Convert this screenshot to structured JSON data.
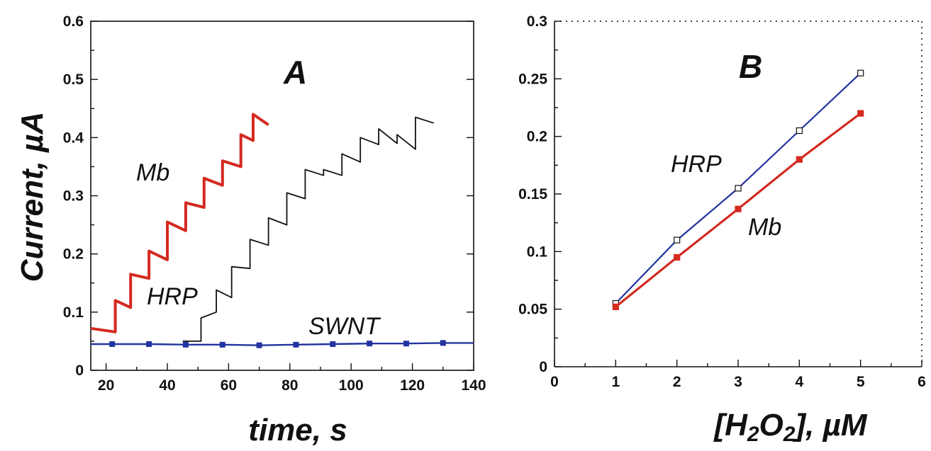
{
  "chart_data": [
    {
      "panel": "A",
      "type": "line",
      "xlabel": "time, s",
      "ylabel": "Current, µA",
      "xlim": [
        15,
        140
      ],
      "ylim": [
        0,
        0.6
      ],
      "xticks": [
        "20",
        "40",
        "60",
        "80",
        "100",
        "120",
        "140"
      ],
      "yticks": [
        "0",
        "0.1",
        "0.2",
        "0.3",
        "0.4",
        "0.5",
        "0.6"
      ],
      "grid": false,
      "series": [
        {
          "name": "Mb",
          "color": "#d42a20",
          "markers": false,
          "steps": [
            [
              15,
              0.072
            ],
            [
              23,
              0.066
            ],
            [
              23,
              0.12
            ],
            [
              28,
              0.108
            ],
            [
              28,
              0.165
            ],
            [
              34,
              0.158
            ],
            [
              34,
              0.205
            ],
            [
              40,
              0.19
            ],
            [
              40,
              0.255
            ],
            [
              46,
              0.24
            ],
            [
              46,
              0.288
            ],
            [
              52,
              0.28
            ],
            [
              52,
              0.33
            ],
            [
              58,
              0.318
            ],
            [
              58,
              0.36
            ],
            [
              64,
              0.35
            ],
            [
              64,
              0.405
            ],
            [
              68,
              0.395
            ],
            [
              68,
              0.44
            ],
            [
              73,
              0.422
            ]
          ]
        },
        {
          "name": "HRP",
          "color": "#111111",
          "markers": false,
          "steps": [
            [
              45,
              0.05
            ],
            [
              51,
              0.05
            ],
            [
              51,
              0.09
            ],
            [
              56,
              0.1
            ],
            [
              56,
              0.138
            ],
            [
              61,
              0.125
            ],
            [
              61,
              0.178
            ],
            [
              67,
              0.175
            ],
            [
              67,
              0.225
            ],
            [
              73,
              0.215
            ],
            [
              73,
              0.262
            ],
            [
              79,
              0.25
            ],
            [
              79,
              0.305
            ],
            [
              85,
              0.295
            ],
            [
              85,
              0.345
            ],
            [
              91,
              0.335
            ],
            [
              91,
              0.345
            ],
            [
              97,
              0.335
            ],
            [
              97,
              0.372
            ],
            [
              103,
              0.358
            ],
            [
              103,
              0.4
            ],
            [
              109,
              0.388
            ],
            [
              109,
              0.415
            ],
            [
              115,
              0.39
            ],
            [
              115,
              0.405
            ],
            [
              121,
              0.38
            ],
            [
              121,
              0.435
            ],
            [
              127,
              0.425
            ]
          ]
        },
        {
          "name": "SWNT",
          "color": "#2233a0",
          "markers": true,
          "x": [
            22,
            34,
            46,
            58,
            70,
            82,
            94,
            106,
            118,
            130
          ],
          "y": [
            0.045,
            0.045,
            0.044,
            0.044,
            0.043,
            0.044,
            0.045,
            0.046,
            0.046,
            0.047
          ]
        }
      ],
      "annotations": [
        {
          "text": "A"
        },
        {
          "text": "Mb"
        },
        {
          "text": "HRP"
        },
        {
          "text": "SWNT"
        }
      ]
    },
    {
      "panel": "B",
      "type": "line",
      "xlabel": "[H2O2], µM",
      "ylabel": "",
      "xlim": [
        0,
        6
      ],
      "ylim": [
        0,
        0.3
      ],
      "xticks": [
        "0",
        "1",
        "2",
        "3",
        "4",
        "5",
        "6"
      ],
      "yticks": [
        "0",
        "0.05",
        "0.1",
        "0.15",
        "0.2",
        "0.25",
        "0.3"
      ],
      "grid": false,
      "series": [
        {
          "name": "HRP",
          "color": "#2233a0",
          "marker": "open-square",
          "x": [
            1,
            2,
            3,
            4,
            5
          ],
          "y": [
            0.055,
            0.11,
            0.155,
            0.205,
            0.255
          ]
        },
        {
          "name": "Mb",
          "color": "#d42a20",
          "marker": "filled-square",
          "x": [
            1,
            2,
            3,
            4,
            5
          ],
          "y": [
            0.052,
            0.095,
            0.137,
            0.18,
            0.22
          ]
        }
      ],
      "annotations": [
        {
          "text": "B"
        },
        {
          "text": "HRP"
        },
        {
          "text": "Mb"
        }
      ]
    }
  ]
}
